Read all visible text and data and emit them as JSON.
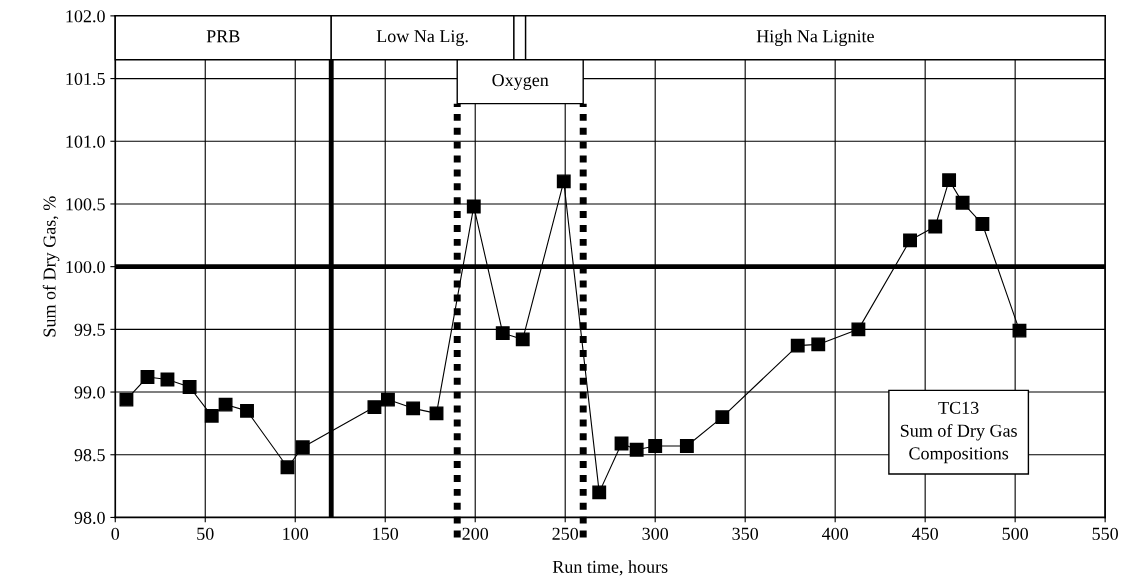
{
  "chart_data": {
    "type": "line",
    "xlabel": "Run time, hours",
    "ylabel": "Sum of Dry Gas, %",
    "series": [
      {
        "color": "#000000",
        "x": [
          6.2,
          17.9,
          29,
          41.3,
          53.6,
          61.3,
          73.2,
          95.7,
          104.2,
          144,
          151.5,
          165.5,
          178.5,
          199.2,
          215.3,
          226.4,
          249.2,
          268.9,
          281.3,
          289.7,
          300,
          317.6,
          337.3,
          379.2,
          390.6,
          412.9,
          441.6,
          455.6,
          463.3,
          470.8,
          481.8,
          502.4
        ],
        "values": [
          98.94,
          99.12,
          99.1,
          99.04,
          98.81,
          98.9,
          98.85,
          98.4,
          98.56,
          98.88,
          98.94,
          98.87,
          98.83,
          100.48,
          99.47,
          99.42,
          100.68,
          98.2,
          98.59,
          98.54,
          98.57,
          98.57,
          98.8,
          99.37,
          99.38,
          99.5,
          100.21,
          100.32,
          100.69,
          100.51,
          100.34,
          99.49
        ]
      }
    ],
    "xlim": [
      0,
      550
    ],
    "xticks": [
      0,
      50,
      100,
      150,
      200,
      250,
      300,
      350,
      400,
      450,
      500,
      550
    ],
    "ylim": [
      98.0,
      102.0
    ],
    "yticks": [
      {
        "value": 98.0,
        "label": "98.0"
      },
      {
        "value": 98.5,
        "label": "98.5"
      },
      {
        "value": 99.0,
        "label": "99.0"
      },
      {
        "value": 99.5,
        "label": "99.5"
      },
      {
        "value": 100.0,
        "label": "100.0"
      },
      {
        "value": 100.5,
        "label": "100.5"
      },
      {
        "value": 101.0,
        "label": "101.0"
      },
      {
        "value": 101.5,
        "label": "101.5"
      },
      {
        "value": 102.0,
        "label": "102.0"
      }
    ],
    "grid": true,
    "marker": "square",
    "line_style": "solid",
    "ref_lines": [
      {
        "axis": "y",
        "value": 100.0,
        "color": "#000000",
        "line_style": "solid"
      },
      {
        "axis": "x",
        "value": 120,
        "color": "#000000",
        "line_style": "solid"
      },
      {
        "axis": "x",
        "value": 190,
        "color": "#000000",
        "line_style": "dotted"
      },
      {
        "axis": "x",
        "value": 260,
        "color": "#000000",
        "line_style": "dotted"
      }
    ],
    "bands": [
      {
        "axis": "x",
        "from": 0,
        "to": 120,
        "label": "PRB"
      },
      {
        "axis": "x",
        "from": 120,
        "to": 221.5,
        "label": "Low Na Lig."
      },
      {
        "axis": "x",
        "from": 221.5,
        "to": 228
      },
      {
        "axis": "x",
        "from": 228,
        "to": 550,
        "label": "High Na Lignite"
      },
      {
        "axis": "x",
        "from": 190,
        "to": 260,
        "label": "Oxygen"
      }
    ],
    "annotations": [
      "TC13\nSum of Dry Gas\nCompositions"
    ]
  }
}
